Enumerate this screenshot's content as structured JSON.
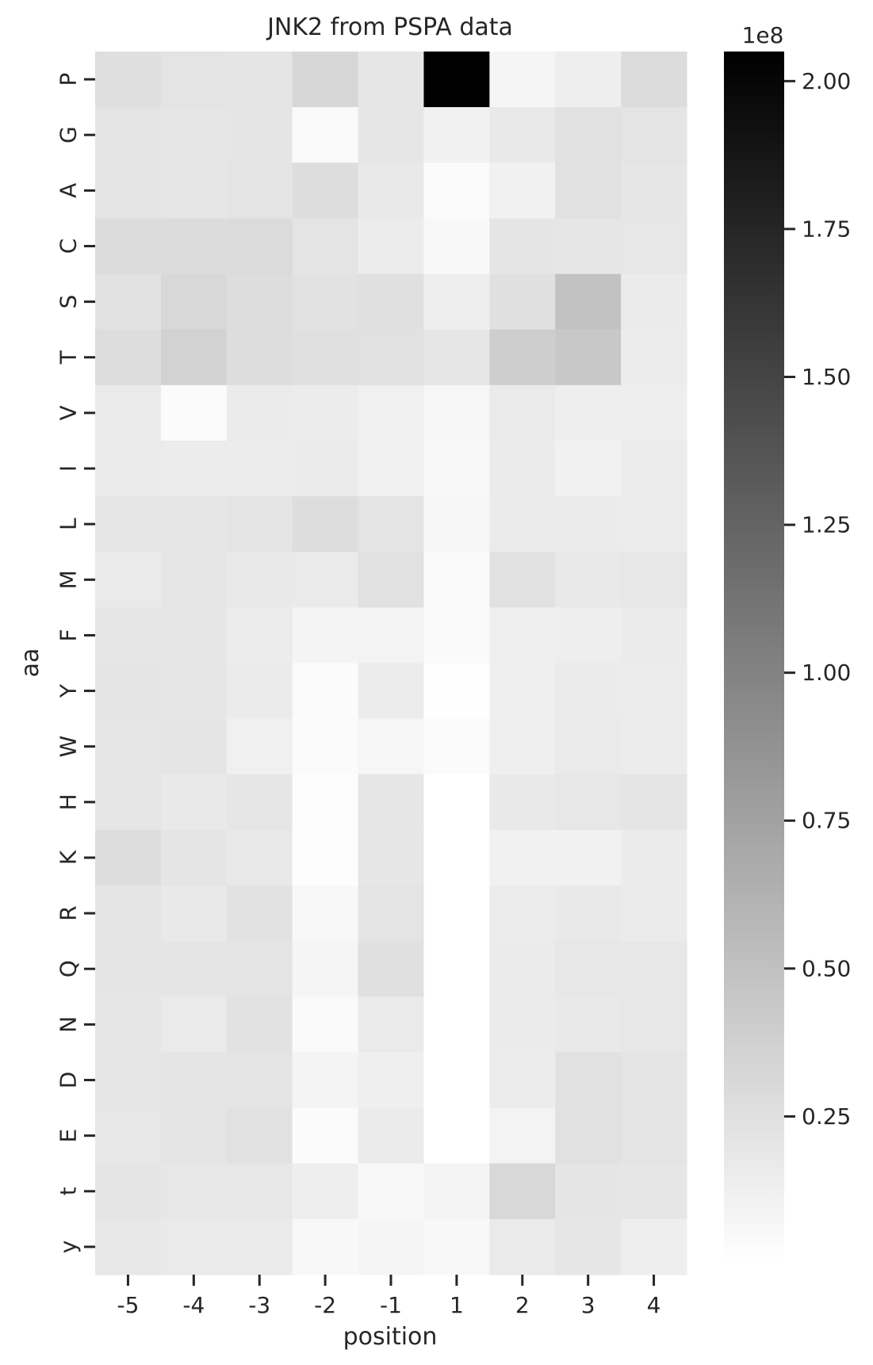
{
  "chart_data": {
    "type": "heatmap",
    "title": "JNK2 from PSPA data",
    "xlabel": "position",
    "ylabel": "aa",
    "x_categories": [
      "-5",
      "-4",
      "-3",
      "-2",
      "-1",
      "1",
      "2",
      "3",
      "4"
    ],
    "y_categories": [
      "P",
      "G",
      "A",
      "C",
      "S",
      "T",
      "V",
      "I",
      "L",
      "M",
      "F",
      "Y",
      "W",
      "H",
      "K",
      "R",
      "Q",
      "N",
      "D",
      "E",
      "t",
      "y"
    ],
    "values": [
      [
        0.26,
        0.22,
        0.21,
        0.32,
        0.2,
        2.05,
        0.08,
        0.14,
        0.28
      ],
      [
        0.22,
        0.2,
        0.21,
        0.05,
        0.2,
        0.11,
        0.18,
        0.24,
        0.22
      ],
      [
        0.22,
        0.2,
        0.22,
        0.27,
        0.18,
        0.03,
        0.11,
        0.24,
        0.2
      ],
      [
        0.28,
        0.28,
        0.29,
        0.22,
        0.15,
        0.06,
        0.21,
        0.2,
        0.19
      ],
      [
        0.23,
        0.31,
        0.27,
        0.23,
        0.25,
        0.14,
        0.25,
        0.49,
        0.16
      ],
      [
        0.27,
        0.36,
        0.27,
        0.25,
        0.24,
        0.2,
        0.39,
        0.44,
        0.15
      ],
      [
        0.17,
        0.03,
        0.16,
        0.15,
        0.12,
        0.07,
        0.17,
        0.14,
        0.14
      ],
      [
        0.17,
        0.15,
        0.15,
        0.16,
        0.11,
        0.06,
        0.16,
        0.11,
        0.15
      ],
      [
        0.2,
        0.2,
        0.22,
        0.27,
        0.22,
        0.07,
        0.16,
        0.16,
        0.15
      ],
      [
        0.17,
        0.2,
        0.18,
        0.17,
        0.24,
        0.04,
        0.24,
        0.18,
        0.19
      ],
      [
        0.2,
        0.2,
        0.15,
        0.09,
        0.1,
        0.04,
        0.13,
        0.14,
        0.16
      ],
      [
        0.22,
        0.2,
        0.16,
        0.03,
        0.15,
        0.01,
        0.13,
        0.16,
        0.15
      ],
      [
        0.2,
        0.21,
        0.12,
        0.03,
        0.07,
        0.03,
        0.13,
        0.17,
        0.15
      ],
      [
        0.2,
        0.18,
        0.2,
        0.02,
        0.2,
        0.0,
        0.18,
        0.19,
        0.21
      ],
      [
        0.27,
        0.21,
        0.18,
        0.02,
        0.2,
        0.0,
        0.11,
        0.11,
        0.16
      ],
      [
        0.21,
        0.18,
        0.23,
        0.06,
        0.22,
        0.0,
        0.15,
        0.18,
        0.16
      ],
      [
        0.21,
        0.21,
        0.22,
        0.08,
        0.25,
        0.0,
        0.16,
        0.19,
        0.19
      ],
      [
        0.2,
        0.17,
        0.23,
        0.04,
        0.17,
        0.0,
        0.16,
        0.18,
        0.19
      ],
      [
        0.2,
        0.22,
        0.22,
        0.09,
        0.13,
        0.0,
        0.15,
        0.24,
        0.22
      ],
      [
        0.19,
        0.21,
        0.24,
        0.03,
        0.16,
        0.0,
        0.1,
        0.24,
        0.22
      ],
      [
        0.21,
        0.19,
        0.19,
        0.14,
        0.06,
        0.09,
        0.31,
        0.21,
        0.2
      ],
      [
        0.19,
        0.17,
        0.17,
        0.06,
        0.08,
        0.06,
        0.17,
        0.2,
        0.14
      ]
    ],
    "colorbar": {
      "colormap": "greys",
      "scale_label": "1e8",
      "vmin": 0.0,
      "vmax": 2.05,
      "ticks": [
        0.25,
        0.5,
        0.75,
        1.0,
        1.25,
        1.5,
        1.75,
        2.0
      ],
      "tick_labels": [
        "0.25",
        "0.50",
        "0.75",
        "1.00",
        "1.25",
        "1.50",
        "1.75",
        "2.00"
      ]
    }
  }
}
